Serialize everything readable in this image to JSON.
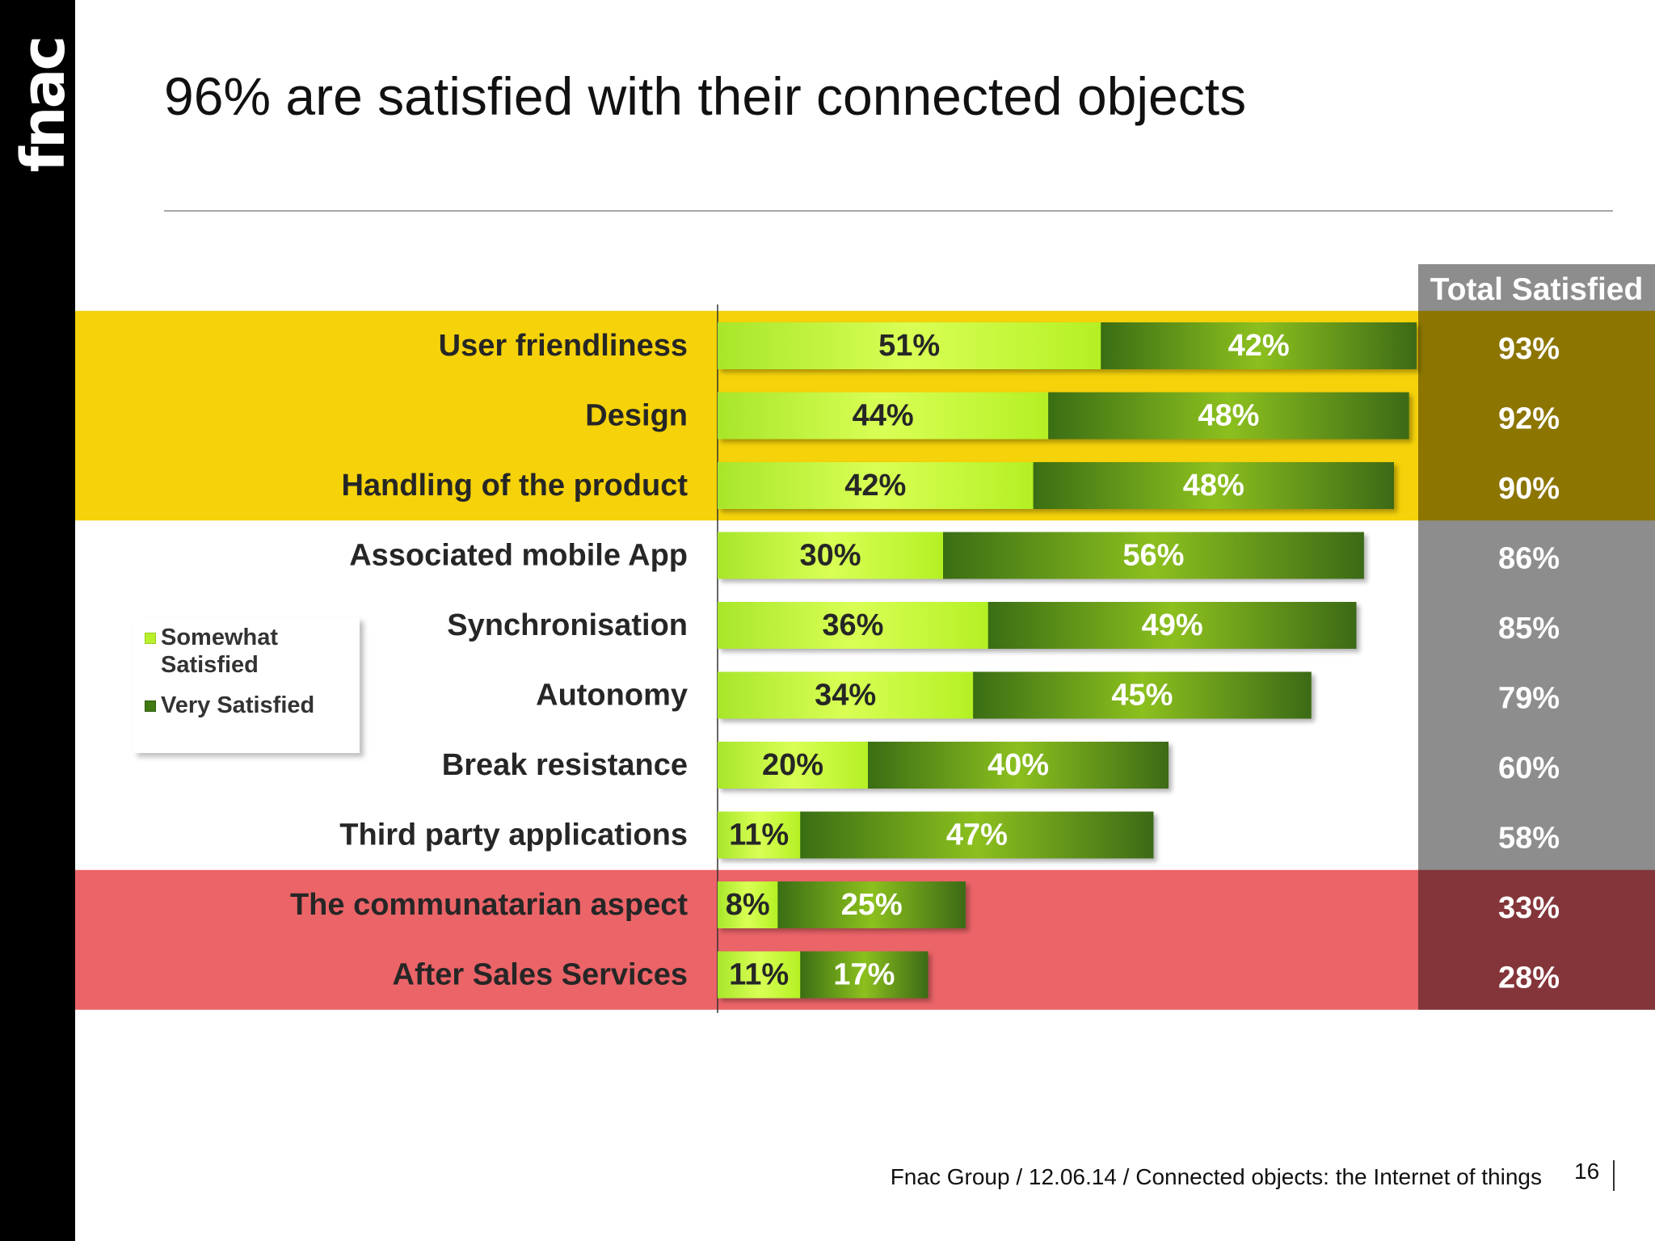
{
  "brand": {
    "logo_text": "fnac"
  },
  "slide": {
    "title": "96% are satisfied with their connected objects",
    "footer": "Fnac Group / 12.06.14 / Connected objects: the Internet of things",
    "page_number": "16"
  },
  "chart_data": {
    "type": "bar",
    "orientation": "horizontal",
    "stacked": true,
    "categories": [
      "User friendliness",
      "Design",
      "Handling of the product",
      "Associated mobile App",
      "Synchronisation",
      "Autonomy",
      "Break resistance",
      "Third party applications",
      "The communatarian aspect",
      "After Sales Services"
    ],
    "series": [
      {
        "name": "Somewhat Satisfied",
        "values": [
          51,
          44,
          42,
          30,
          36,
          34,
          20,
          11,
          8,
          11
        ]
      },
      {
        "name": "Very Satisfied",
        "values": [
          42,
          48,
          48,
          56,
          49,
          45,
          40,
          47,
          25,
          17
        ]
      }
    ],
    "value_suffix": "%",
    "total_header": "Total Satisfied",
    "totals": [
      93,
      92,
      90,
      86,
      85,
      79,
      60,
      58,
      33,
      28
    ],
    "row_highlights": [
      "top",
      "top",
      "top",
      "none",
      "none",
      "none",
      "none",
      "none",
      "bottom",
      "bottom"
    ],
    "legend_position": "left",
    "grid": false,
    "colors": {
      "somewhat": "#b8f02c",
      "very": "#3f7a12",
      "highlight_top": "#f5d20a",
      "highlight_top_total": "#8c7500",
      "highlight_bottom": "#eb6468",
      "highlight_bottom_total": "#84353a",
      "total_column": "#8d8d8d"
    }
  }
}
